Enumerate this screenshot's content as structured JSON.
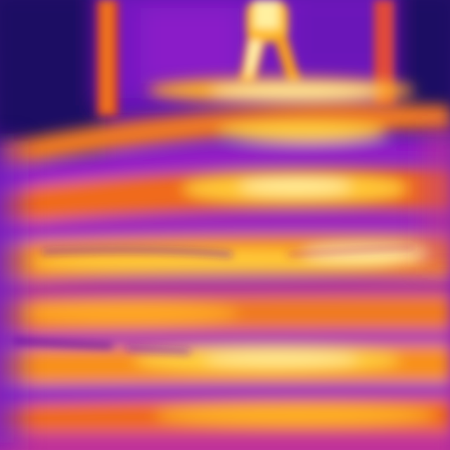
{
  "image": {
    "kind": "thermal-camera-photo",
    "subject": "person-walking-on-stairs",
    "palette": {
      "coldest": "#1a0a5e",
      "cold": "#5a10b0",
      "cool": "#9a1cc8",
      "mid": "#d83a8a",
      "warm": "#f06a1e",
      "hot": "#ffb020",
      "hottest": "#fff2a0"
    }
  }
}
